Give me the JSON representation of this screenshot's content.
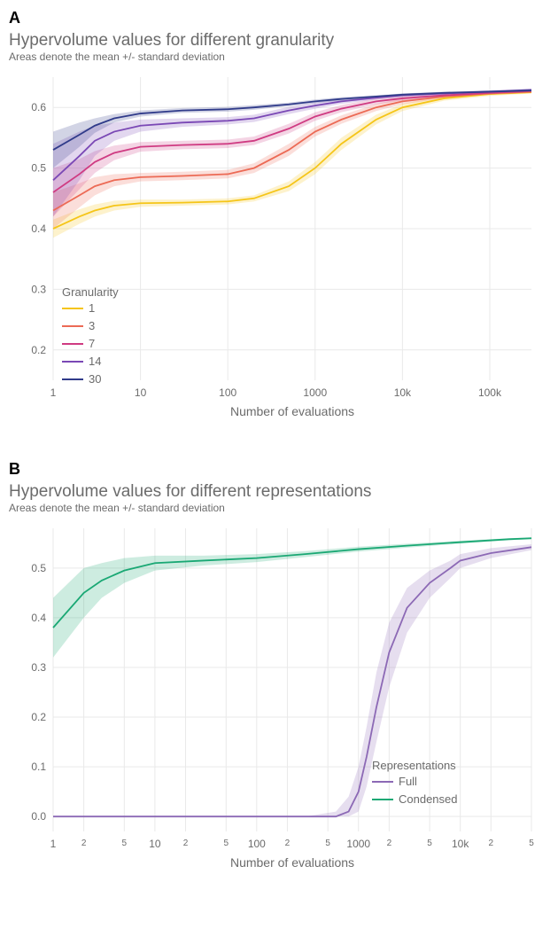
{
  "panelA": {
    "label": "A",
    "title": "Hypervolume values for different granularity",
    "subtitle": "Areas denote the mean +/- standard deviation",
    "xlabel": "Number of evaluations",
    "xscale": "log",
    "xlim": [
      1,
      300000
    ],
    "xticks": [
      1,
      10,
      100,
      1000,
      10000,
      100000
    ],
    "xtick_labels": [
      "1",
      "10",
      "100",
      "1000",
      "10k",
      "100k"
    ],
    "ylim": [
      0.15,
      0.65
    ],
    "yticks": [
      0.2,
      0.3,
      0.4,
      0.5,
      0.6
    ],
    "ytick_labels": [
      "0.2",
      "0.3",
      "0.4",
      "0.5",
      "0.6"
    ],
    "legend_title": "Granularity",
    "background_color": "#ffffff",
    "grid_color": "#e9e9e9",
    "text_color": "#6b6b6b",
    "line_width": 1.8,
    "band_opacity": 0.22,
    "series": [
      {
        "name": "1",
        "color": "#f5c518",
        "x": [
          1,
          2,
          3,
          5,
          10,
          30,
          100,
          200,
          500,
          1000,
          2000,
          5000,
          10000,
          30000,
          100000,
          300000
        ],
        "mean": [
          0.4,
          0.42,
          0.43,
          0.438,
          0.442,
          0.443,
          0.445,
          0.45,
          0.47,
          0.5,
          0.54,
          0.58,
          0.6,
          0.615,
          0.622,
          0.625
        ],
        "lo": [
          0.385,
          0.408,
          0.42,
          0.43,
          0.436,
          0.438,
          0.44,
          0.445,
          0.462,
          0.49,
          0.53,
          0.572,
          0.594,
          0.611,
          0.619,
          0.623
        ],
        "hi": [
          0.415,
          0.432,
          0.44,
          0.446,
          0.448,
          0.448,
          0.45,
          0.455,
          0.478,
          0.51,
          0.55,
          0.588,
          0.606,
          0.619,
          0.625,
          0.627
        ]
      },
      {
        "name": "3",
        "color": "#ec6a55",
        "x": [
          1,
          2,
          3,
          5,
          10,
          30,
          100,
          200,
          500,
          1000,
          2000,
          5000,
          10000,
          30000,
          100000,
          300000
        ],
        "mean": [
          0.43,
          0.455,
          0.47,
          0.48,
          0.485,
          0.487,
          0.49,
          0.5,
          0.53,
          0.56,
          0.58,
          0.6,
          0.61,
          0.618,
          0.623,
          0.626
        ],
        "lo": [
          0.4,
          0.435,
          0.455,
          0.47,
          0.478,
          0.48,
          0.483,
          0.492,
          0.52,
          0.552,
          0.573,
          0.594,
          0.605,
          0.615,
          0.621,
          0.624
        ],
        "hi": [
          0.46,
          0.475,
          0.485,
          0.49,
          0.492,
          0.494,
          0.497,
          0.508,
          0.54,
          0.568,
          0.587,
          0.606,
          0.615,
          0.621,
          0.625,
          0.628
        ]
      },
      {
        "name": "7",
        "color": "#cf3b82",
        "x": [
          1,
          2,
          3,
          5,
          10,
          30,
          100,
          200,
          500,
          1000,
          2000,
          5000,
          10000,
          30000,
          100000,
          300000
        ],
        "mean": [
          0.46,
          0.49,
          0.51,
          0.525,
          0.535,
          0.538,
          0.54,
          0.545,
          0.565,
          0.585,
          0.598,
          0.61,
          0.615,
          0.62,
          0.624,
          0.627
        ],
        "lo": [
          0.42,
          0.465,
          0.492,
          0.513,
          0.527,
          0.531,
          0.533,
          0.538,
          0.557,
          0.578,
          0.592,
          0.605,
          0.611,
          0.617,
          0.622,
          0.625
        ],
        "hi": [
          0.5,
          0.515,
          0.528,
          0.537,
          0.543,
          0.545,
          0.547,
          0.552,
          0.573,
          0.592,
          0.604,
          0.615,
          0.619,
          0.623,
          0.626,
          0.629
        ]
      },
      {
        "name": "14",
        "color": "#7a48b5",
        "x": [
          1,
          2,
          3,
          5,
          10,
          30,
          100,
          200,
          500,
          1000,
          2000,
          5000,
          10000,
          30000,
          100000,
          300000
        ],
        "mean": [
          0.48,
          0.52,
          0.545,
          0.56,
          0.57,
          0.575,
          0.578,
          0.582,
          0.595,
          0.603,
          0.61,
          0.616,
          0.62,
          0.623,
          0.626,
          0.629
        ],
        "lo": [
          0.42,
          0.48,
          0.52,
          0.545,
          0.56,
          0.568,
          0.572,
          0.576,
          0.589,
          0.598,
          0.606,
          0.613,
          0.617,
          0.621,
          0.624,
          0.627
        ],
        "hi": [
          0.54,
          0.56,
          0.57,
          0.575,
          0.58,
          0.582,
          0.584,
          0.588,
          0.601,
          0.608,
          0.614,
          0.619,
          0.623,
          0.625,
          0.628,
          0.631
        ]
      },
      {
        "name": "30",
        "color": "#303b8a",
        "x": [
          1,
          2,
          3,
          5,
          10,
          30,
          100,
          200,
          500,
          1000,
          2000,
          5000,
          10000,
          30000,
          100000,
          300000
        ],
        "mean": [
          0.53,
          0.555,
          0.57,
          0.582,
          0.59,
          0.595,
          0.597,
          0.6,
          0.605,
          0.61,
          0.614,
          0.618,
          0.621,
          0.624,
          0.626,
          0.628
        ],
        "lo": [
          0.5,
          0.535,
          0.558,
          0.575,
          0.585,
          0.591,
          0.593,
          0.596,
          0.602,
          0.607,
          0.611,
          0.616,
          0.619,
          0.622,
          0.624,
          0.626
        ],
        "hi": [
          0.56,
          0.575,
          0.582,
          0.589,
          0.595,
          0.599,
          0.601,
          0.604,
          0.608,
          0.613,
          0.617,
          0.62,
          0.623,
          0.626,
          0.628,
          0.63
        ]
      }
    ]
  },
  "panelB": {
    "label": "B",
    "title": "Hypervolume values for different representations",
    "subtitle": "Areas denote the mean +/- standard deviation",
    "xlabel": "Number of evaluations",
    "xscale": "log",
    "xlim": [
      1,
      50000
    ],
    "xticks_major": [
      1,
      10,
      100,
      1000,
      10000
    ],
    "xticks_major_labels": [
      "1",
      "10",
      "100",
      "1000",
      "10k"
    ],
    "xticks_minor": [
      2,
      5,
      20,
      50,
      200,
      500,
      2000,
      5000,
      20000,
      50000
    ],
    "xticks_minor_labels": [
      "2",
      "5",
      "2",
      "5",
      "2",
      "5",
      "2",
      "5",
      "2",
      "5"
    ],
    "ylim": [
      -0.03,
      0.58
    ],
    "yticks": [
      0.0,
      0.1,
      0.2,
      0.3,
      0.4,
      0.5
    ],
    "ytick_labels": [
      "0.0",
      "0.1",
      "0.2",
      "0.3",
      "0.4",
      "0.5"
    ],
    "legend_title": "Representations",
    "background_color": "#ffffff",
    "grid_color": "#e9e9e9",
    "text_color": "#6b6b6b",
    "line_width": 1.8,
    "band_opacity": 0.22,
    "series": [
      {
        "name": "Full",
        "color": "#8c69b5",
        "x": [
          1,
          2,
          5,
          10,
          50,
          100,
          300,
          600,
          800,
          1000,
          1200,
          1500,
          2000,
          3000,
          5000,
          8000,
          10000,
          20000,
          50000
        ],
        "mean": [
          0.0,
          0.0,
          0.0,
          0.0,
          0.0,
          0.0,
          0.0,
          0.0,
          0.01,
          0.05,
          0.12,
          0.22,
          0.33,
          0.42,
          0.47,
          0.5,
          0.515,
          0.53,
          0.542
        ],
        "lo": [
          0.0,
          0.0,
          0.0,
          0.0,
          0.0,
          0.0,
          0.0,
          0.0,
          0.0,
          0.01,
          0.06,
          0.15,
          0.26,
          0.37,
          0.44,
          0.48,
          0.5,
          0.52,
          0.536
        ],
        "hi": [
          0.0,
          0.0,
          0.0,
          0.0,
          0.0,
          0.0,
          0.0,
          0.01,
          0.04,
          0.1,
          0.18,
          0.29,
          0.39,
          0.46,
          0.495,
          0.515,
          0.528,
          0.54,
          0.548
        ]
      },
      {
        "name": "Condensed",
        "color": "#1aa874",
        "x": [
          1,
          2,
          3,
          5,
          10,
          30,
          100,
          300,
          1000,
          3000,
          10000,
          30000,
          50000
        ],
        "mean": [
          0.38,
          0.45,
          0.475,
          0.495,
          0.51,
          0.515,
          0.52,
          0.528,
          0.538,
          0.545,
          0.552,
          0.558,
          0.56
        ],
        "lo": [
          0.32,
          0.4,
          0.44,
          0.47,
          0.495,
          0.505,
          0.512,
          0.522,
          0.533,
          0.541,
          0.549,
          0.556,
          0.558
        ],
        "hi": [
          0.44,
          0.5,
          0.51,
          0.52,
          0.525,
          0.525,
          0.528,
          0.534,
          0.543,
          0.549,
          0.555,
          0.56,
          0.562
        ]
      }
    ]
  }
}
